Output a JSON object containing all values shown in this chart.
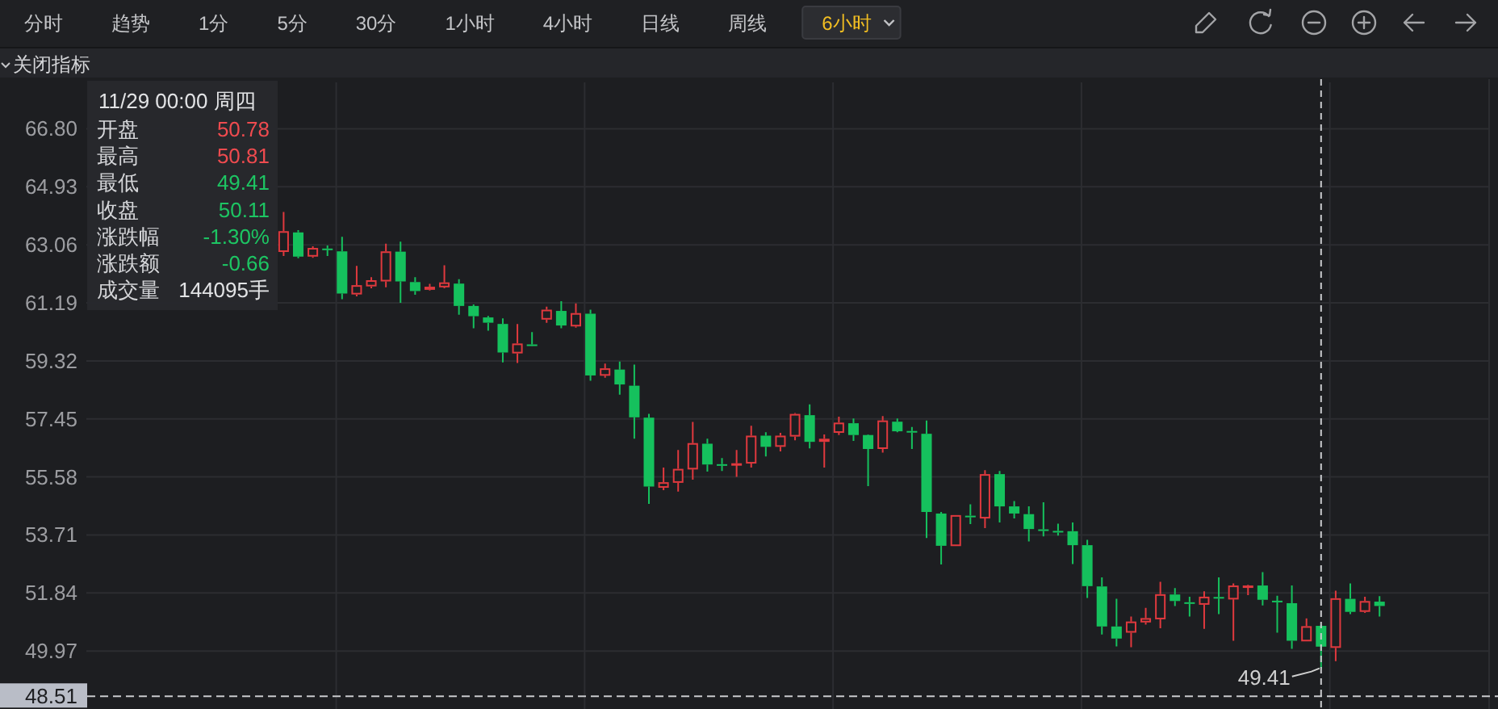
{
  "chart_data": {
    "type": "candlestick",
    "categories": [
      null,
      null,
      null,
      null,
      null,
      null,
      null,
      null,
      null,
      null,
      null,
      null,
      null,
      null,
      null,
      null,
      null,
      null,
      null,
      null,
      null,
      null,
      null,
      null,
      null,
      null,
      null,
      null,
      null,
      null,
      null,
      null,
      null,
      null,
      null,
      null,
      null,
      null,
      null,
      null,
      null,
      null,
      null,
      null,
      null,
      null,
      null,
      null,
      null,
      null,
      null,
      null,
      null,
      null,
      null,
      null,
      null,
      null,
      null,
      null,
      null,
      null,
      null,
      null,
      null,
      null,
      null,
      null,
      null,
      null,
      null,
      null,
      null,
      null,
      null,
      null,
      null,
      null,
      null,
      null,
      null,
      null,
      null,
      null,
      null,
      null,
      null,
      null,
      null,
      null,
      null,
      null,
      null,
      null,
      null,
      null
    ],
    "ohlc": [
      null,
      null,
      null,
      null,
      null,
      null,
      null,
      null,
      null,
      null,
      null,
      null,
      null,
      [
        62.83,
        64.12,
        62.7,
        63.5
      ],
      [
        63.46,
        63.53,
        62.63,
        62.68
      ],
      [
        62.68,
        63.01,
        62.64,
        62.96
      ],
      [
        62.94,
        63.04,
        62.7,
        62.9
      ],
      [
        62.85,
        63.32,
        61.31,
        61.49
      ],
      [
        61.46,
        62.38,
        61.4,
        61.76
      ],
      [
        61.72,
        62.02,
        61.66,
        61.92
      ],
      [
        61.88,
        63.1,
        61.69,
        62.85
      ],
      [
        62.84,
        63.16,
        61.19,
        61.88
      ],
      [
        61.86,
        62.02,
        61.45,
        61.57
      ],
      [
        61.61,
        61.8,
        61.59,
        61.71
      ],
      [
        61.69,
        62.4,
        61.66,
        61.85
      ],
      [
        61.81,
        61.95,
        60.81,
        61.09
      ],
      [
        61.09,
        61.14,
        60.37,
        60.76
      ],
      [
        60.72,
        60.77,
        60.29,
        60.55
      ],
      [
        60.51,
        60.69,
        59.27,
        59.59
      ],
      [
        59.56,
        60.51,
        59.25,
        59.88
      ],
      [
        59.85,
        60.25,
        59.79,
        59.83
      ],
      [
        60.65,
        61.07,
        60.55,
        60.97
      ],
      [
        60.93,
        61.24,
        60.37,
        60.46
      ],
      [
        60.43,
        61.17,
        60.39,
        60.86
      ],
      [
        60.84,
        60.97,
        58.68,
        58.85
      ],
      [
        58.84,
        59.23,
        58.78,
        59.08
      ],
      [
        59.04,
        59.3,
        58.23,
        58.56
      ],
      [
        58.52,
        59.2,
        56.81,
        57.5
      ],
      [
        57.49,
        57.61,
        54.71,
        55.27
      ],
      [
        55.23,
        55.88,
        55.15,
        55.41
      ],
      [
        55.39,
        56.45,
        55.11,
        55.84
      ],
      [
        55.82,
        57.35,
        55.49,
        56.67
      ],
      [
        56.65,
        56.81,
        55.75,
        55.98
      ],
      [
        55.99,
        56.19,
        55.77,
        55.97
      ],
      [
        56.0,
        56.45,
        55.58,
        56.02
      ],
      [
        56.01,
        57.23,
        55.88,
        56.91
      ],
      [
        56.91,
        57.02,
        56.24,
        56.55
      ],
      [
        56.55,
        57.0,
        56.4,
        56.91
      ],
      [
        56.88,
        57.64,
        56.76,
        57.61
      ],
      [
        57.57,
        57.92,
        56.5,
        56.71
      ],
      [
        56.71,
        56.95,
        55.88,
        56.81
      ],
      [
        57.0,
        57.52,
        56.93,
        57.33
      ],
      [
        57.31,
        57.46,
        56.74,
        56.93
      ],
      [
        56.93,
        56.95,
        55.28,
        56.48
      ],
      [
        56.48,
        57.54,
        56.36,
        57.4
      ],
      [
        57.36,
        57.46,
        57.02,
        57.05
      ],
      [
        57.06,
        57.19,
        56.48,
        57.04
      ],
      [
        56.97,
        57.4,
        53.61,
        54.45
      ],
      [
        54.4,
        54.45,
        52.76,
        53.36
      ],
      [
        53.35,
        54.35,
        53.35,
        54.35
      ],
      [
        54.33,
        54.7,
        54.06,
        54.31
      ],
      [
        54.24,
        55.8,
        53.93,
        55.67
      ],
      [
        55.67,
        55.77,
        54.11,
        54.63
      ],
      [
        54.63,
        54.8,
        54.24,
        54.4
      ],
      [
        54.38,
        54.63,
        53.5,
        53.9
      ],
      [
        53.89,
        54.76,
        53.66,
        53.87
      ],
      [
        53.84,
        54.07,
        53.69,
        53.82
      ],
      [
        53.83,
        54.11,
        52.77,
        53.38
      ],
      [
        53.38,
        53.55,
        51.68,
        52.06
      ],
      [
        52.05,
        52.34,
        50.5,
        50.76
      ],
      [
        50.76,
        51.65,
        50.12,
        50.37
      ],
      [
        50.56,
        51.08,
        50.09,
        50.92
      ],
      [
        50.89,
        51.36,
        50.82,
        51.03
      ],
      [
        50.99,
        52.2,
        50.7,
        51.8
      ],
      [
        51.79,
        52.0,
        51.42,
        51.58
      ],
      [
        51.54,
        51.72,
        51.08,
        51.52
      ],
      [
        51.46,
        51.89,
        50.68,
        51.72
      ],
      [
        51.71,
        52.34,
        51.16,
        51.69
      ],
      [
        51.63,
        52.15,
        50.3,
        52.08
      ],
      [
        52.01,
        52.1,
        51.77,
        52.08
      ],
      [
        52.08,
        52.51,
        51.44,
        51.62
      ],
      [
        51.59,
        51.75,
        50.56,
        51.57
      ],
      [
        51.51,
        52.08,
        50.04,
        50.3
      ],
      [
        50.28,
        51.02,
        50.28,
        50.77
      ],
      [
        50.78,
        50.81,
        49.41,
        50.11
      ],
      [
        50.07,
        51.91,
        49.64,
        51.67
      ],
      [
        51.65,
        52.15,
        51.16,
        51.23
      ],
      [
        51.23,
        51.72,
        51.2,
        51.58
      ],
      [
        51.56,
        51.74,
        51.08,
        51.42
      ],
      null,
      null,
      null,
      null,
      null,
      null,
      null
    ],
    "colors": [
      null,
      null,
      null,
      null,
      null,
      null,
      null,
      null,
      null,
      null,
      null,
      null,
      null,
      "#e0393e",
      "#15c15d",
      "#e0393e",
      "#15c15d",
      "#15c15d",
      "#e0393e",
      "#e0393e",
      "#e0393e",
      "#15c15d",
      "#15c15d",
      "#e0393e",
      "#e0393e",
      "#15c15d",
      "#15c15d",
      "#15c15d",
      "#15c15d",
      "#e0393e",
      "#15c15d",
      "#e0393e",
      "#15c15d",
      "#e0393e",
      "#15c15d",
      "#e0393e",
      "#15c15d",
      "#15c15d",
      "#15c15d",
      "#e0393e",
      "#e0393e",
      "#e0393e",
      "#15c15d",
      "#15c15d",
      "#e0393e",
      "#e0393e",
      "#15c15d",
      "#e0393e",
      "#e0393e",
      "#15c15d",
      "#e0393e",
      "#e0393e",
      "#15c15d",
      "#15c15d",
      "#e0393e",
      "#15c15d",
      "#15c15d",
      "#15c15d",
      "#15c15d",
      "#e0393e",
      "#15c15d",
      "#e0393e",
      "#15c15d",
      "#15c15d",
      "#15c15d",
      "#15c15d",
      "#15c15d",
      "#15c15d",
      "#15c15d",
      "#15c15d",
      "#15c15d",
      "#e0393e",
      "#e0393e",
      "#e0393e",
      "#15c15d",
      "#15c15d",
      "#e0393e",
      "#15c15d",
      "#e0393e",
      "#e0393e",
      "#15c15d",
      "#15c15d",
      "#15c15d",
      "#e0393e",
      "#15c15d",
      "#e0393e",
      "#15c15d",
      "#e0393e",
      "#15c15d",
      null,
      null,
      null,
      null,
      null,
      null,
      null
    ],
    "ylim": [
      48.1,
      68.4
    ],
    "yticks": [
      {
        "value": 66.8,
        "label": "66.80"
      },
      64.93,
      63.06,
      61.19,
      59.32,
      57.45,
      55.58,
      53.71,
      51.84,
      49.97
    ],
    "tick_labels": "y",
    "grid": true,
    "ref_lines": [
      {
        "axis": "y",
        "value": 48.51,
        "label": "48.51",
        "line_style": "dashed",
        "color": "#c9cacd"
      }
    ],
    "annotations": [
      "分时",
      "趋势",
      "1分",
      "5分",
      "30分",
      "1小时",
      "4小时",
      "日线",
      "周线",
      "6小时",
      "关闭指标",
      "11/29 00:00 周四",
      "开盘",
      "50.78",
      "最高",
      "50.81",
      "最低",
      "49.41",
      "收盘",
      "50.11",
      "涨跌幅",
      "-1.30%",
      "涨跌额",
      "-0.66",
      "成交量",
      "144095手",
      "49.41"
    ]
  }
}
